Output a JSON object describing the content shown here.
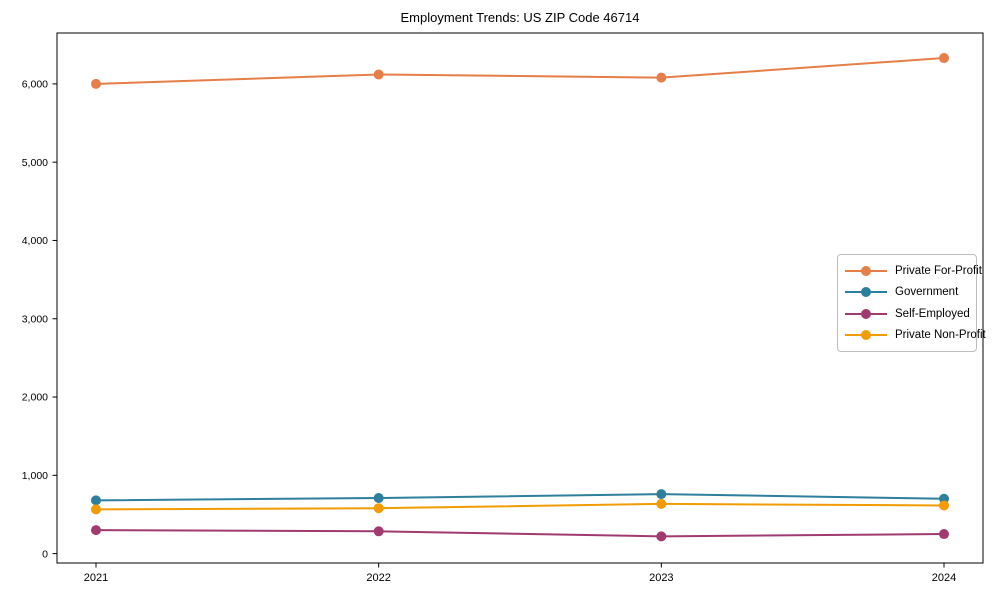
{
  "chart_data": {
    "type": "line",
    "title": "Employment Trends: US ZIP Code 46714",
    "xlabel": "",
    "ylabel": "",
    "x": [
      "2021",
      "2022",
      "2023",
      "2024"
    ],
    "series": [
      {
        "name": "Private For-Profit",
        "color": "#e57e48",
        "values": [
          6000,
          6120,
          6080,
          6330
        ]
      },
      {
        "name": "Government",
        "color": "#2e7f9e",
        "values": [
          680,
          710,
          760,
          700
        ]
      },
      {
        "name": "Self-Employed",
        "color": "#a13a70",
        "values": [
          300,
          285,
          220,
          250
        ]
      },
      {
        "name": "Private Non-Profit",
        "color": "#f19c05",
        "values": [
          565,
          580,
          635,
          615
        ]
      }
    ],
    "yticks": [
      0,
      1000,
      2000,
      3000,
      4000,
      5000,
      6000
    ],
    "ylim": [
      -120,
      6650
    ],
    "grid": false,
    "legend_position": "center-right",
    "marker": "circle",
    "axis_color": "#000000"
  }
}
